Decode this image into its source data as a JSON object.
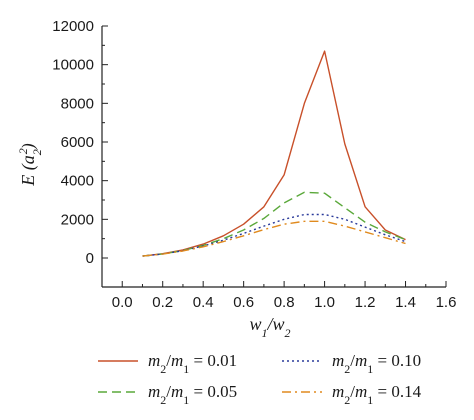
{
  "chart_data": {
    "type": "line",
    "xlabel_html": "w<tspan baseline-shift='sub' font-size='12'>1</tspan>/w<tspan baseline-shift='sub' font-size='12'>2</tspan>",
    "xlabel": "w1/w2",
    "ylabel": "E (a2^2)",
    "xlim": [
      -0.1,
      1.6
    ],
    "ylim": [
      -1500,
      12000
    ],
    "x_ticks": [
      0.0,
      0.2,
      0.4,
      0.6,
      0.8,
      1.0,
      1.2,
      1.4,
      1.6
    ],
    "x_tick_labels": [
      "0.0",
      "0.2",
      "0.4",
      "0.6",
      "0.8",
      "1.0",
      "1.2",
      "1.4",
      "1.6"
    ],
    "y_ticks": [
      0,
      2000,
      4000,
      6000,
      8000,
      10000,
      12000
    ],
    "y_tick_labels": [
      "0",
      "2000",
      "4000",
      "6000",
      "8000",
      "10000",
      "12000"
    ],
    "legend_position": "bottom",
    "series": [
      {
        "name": "m2/m1 = 0.01",
        "color": "#c8502a",
        "dash": "solid",
        "x": [
          0.1,
          0.2,
          0.3,
          0.4,
          0.5,
          0.6,
          0.7,
          0.8,
          0.9,
          1.0,
          1.1,
          1.2,
          1.3,
          1.4
        ],
        "y": [
          100,
          220,
          420,
          720,
          1150,
          1750,
          2650,
          4300,
          8000,
          10700,
          5900,
          2650,
          1450,
          950
        ]
      },
      {
        "name": "m2/m1 = 0.05",
        "color": "#5aa83a",
        "dash": "long",
        "x": [
          0.1,
          0.2,
          0.3,
          0.4,
          0.5,
          0.6,
          0.7,
          0.8,
          0.9,
          1.0,
          1.1,
          1.2,
          1.3,
          1.4
        ],
        "y": [
          100,
          210,
          390,
          650,
          1000,
          1450,
          2050,
          2850,
          3400,
          3350,
          2600,
          1850,
          1350,
          950
        ]
      },
      {
        "name": "m2/m1 = 0.10",
        "color": "#2a3a9a",
        "dash": "dotted",
        "x": [
          0.1,
          0.2,
          0.3,
          0.4,
          0.5,
          0.6,
          0.7,
          0.8,
          0.9,
          1.0,
          1.1,
          1.2,
          1.3,
          1.4
        ],
        "y": [
          100,
          205,
          380,
          620,
          920,
          1270,
          1650,
          2000,
          2250,
          2250,
          2000,
          1600,
          1200,
          850
        ]
      },
      {
        "name": "m2/m1 = 0.14",
        "color": "#e08a1e",
        "dash": "dashdot",
        "x": [
          0.1,
          0.2,
          0.3,
          0.4,
          0.5,
          0.6,
          0.7,
          0.8,
          0.9,
          1.0,
          1.1,
          1.2,
          1.3,
          1.4
        ],
        "y": [
          100,
          200,
          360,
          580,
          850,
          1150,
          1470,
          1750,
          1900,
          1900,
          1650,
          1350,
          1050,
          750
        ]
      }
    ]
  },
  "legend": [
    {
      "id": "s1",
      "label_html": "m<tspan baseline-shift='sub' font-size='12'>2</tspan>/m<tspan baseline-shift='sub' font-size='12'>1</tspan> = 0.01"
    },
    {
      "id": "s3",
      "label_html": "m<tspan baseline-shift='sub' font-size='12'>2</tspan>/m<tspan baseline-shift='sub' font-size='12'>1</tspan> = 0.10"
    },
    {
      "id": "s2",
      "label_html": "m<tspan baseline-shift='sub' font-size='12'>2</tspan>/m<tspan baseline-shift='sub' font-size='12'>1</tspan> = 0.05"
    },
    {
      "id": "s4",
      "label_html": "m<tspan baseline-shift='sub' font-size='12'>2</tspan>/m<tspan baseline-shift='sub' font-size='12'>1</tspan> = 0.14"
    }
  ]
}
